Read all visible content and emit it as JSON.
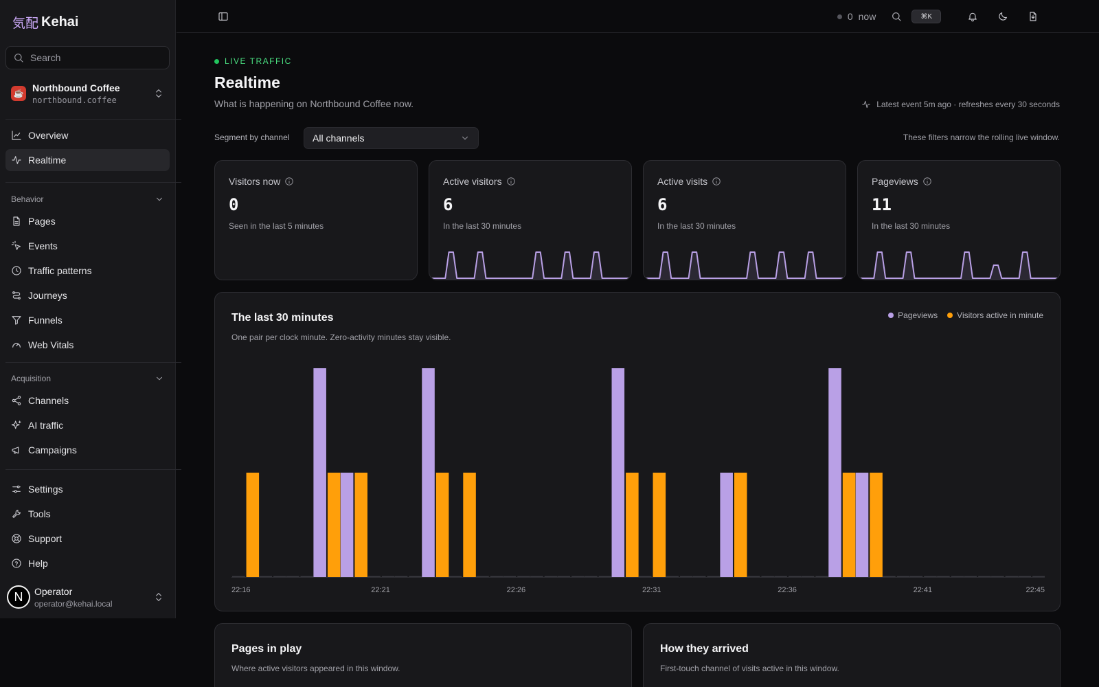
{
  "brand": {
    "kanji": "気配",
    "name": "Kehai"
  },
  "sidebar": {
    "search_placeholder": "Search",
    "site": {
      "name": "Northbound Coffee",
      "domain": "northbound.coffee"
    },
    "main_items": [
      "Overview",
      "Realtime"
    ],
    "behavior": {
      "label": "Behavior",
      "items": [
        "Pages",
        "Events",
        "Traffic patterns",
        "Journeys",
        "Funnels",
        "Web Vitals"
      ]
    },
    "acquisition": {
      "label": "Acquisition",
      "items": [
        "Channels",
        "AI traffic",
        "Campaigns"
      ]
    },
    "footer_items": [
      "Settings",
      "Tools",
      "Support",
      "Help"
    ],
    "user": {
      "initial": "N",
      "name": "Operator",
      "email": "operator@kehai.local"
    }
  },
  "topbar": {
    "live_count": "0",
    "live_label": "now",
    "shortcut": "⌘K"
  },
  "header": {
    "eyebrow": "LIVE TRAFFIC",
    "title": "Realtime",
    "subtitle": "What is happening on Northbound Coffee now.",
    "latest_event": "Latest event 5m ago · refreshes every 30 seconds",
    "segment_label": "Segment by channel",
    "segment_value": "All channels",
    "filter_note": "These filters narrow the rolling live window."
  },
  "stats": [
    {
      "label": "Visitors now",
      "value": "0",
      "caption": "Seen in the last 5 minutes",
      "spark": []
    },
    {
      "label": "Active visitors",
      "value": "6",
      "caption": "In the last 30 minutes",
      "spark": [
        0,
        1,
        0,
        1,
        0,
        0,
        0,
        1,
        0,
        1,
        0,
        1,
        0,
        0
      ]
    },
    {
      "label": "Active visits",
      "value": "6",
      "caption": "In the last 30 minutes",
      "spark": [
        0,
        1,
        0,
        1,
        0,
        0,
        0,
        1,
        0,
        1,
        0,
        1,
        0,
        0
      ]
    },
    {
      "label": "Pageviews",
      "value": "11",
      "caption": "In the last 30 minutes",
      "spark": [
        0,
        1,
        0,
        1,
        0,
        0,
        0,
        1,
        0,
        0.5,
        0,
        1,
        0,
        0
      ]
    }
  ],
  "chart": {
    "title": "The last 30 minutes",
    "subtitle": "One pair per clock minute. Zero-activity minutes stay visible.",
    "legend": [
      {
        "name": "Pageviews",
        "color": "#b9a0e6"
      },
      {
        "name": "Visitors active in minute",
        "color": "#ff9f0a"
      }
    ]
  },
  "chart_data": {
    "type": "bar",
    "categories": [
      "22:16",
      "22:17",
      "22:18",
      "22:19",
      "22:20",
      "22:21",
      "22:22",
      "22:23",
      "22:24",
      "22:25",
      "22:26",
      "22:27",
      "22:28",
      "22:29",
      "22:30",
      "22:31",
      "22:32",
      "22:33",
      "22:34",
      "22:35",
      "22:36",
      "22:37",
      "22:38",
      "22:39",
      "22:40",
      "22:41",
      "22:42",
      "22:43",
      "22:44",
      "22:45"
    ],
    "tick_labels": [
      "22:16",
      "22:21",
      "22:26",
      "22:31",
      "22:36",
      "22:41",
      "22:45"
    ],
    "series": [
      {
        "name": "Pageviews",
        "color": "#b9a0e6",
        "values": [
          0,
          0,
          0,
          2,
          1,
          0,
          0,
          2,
          0,
          0,
          0,
          0,
          0,
          0,
          2,
          0,
          0,
          0,
          1,
          0,
          0,
          0,
          2,
          1,
          0,
          0,
          0,
          0,
          0,
          0
        ]
      },
      {
        "name": "Visitors active in minute",
        "color": "#ff9f0a",
        "values": [
          1,
          0,
          0,
          1,
          1,
          0,
          0,
          1,
          1,
          0,
          0,
          0,
          0,
          0,
          1,
          1,
          0,
          0,
          1,
          0,
          0,
          0,
          1,
          1,
          0,
          0,
          0,
          0,
          0,
          0
        ]
      }
    ],
    "ylim": [
      0,
      2
    ],
    "grid": false,
    "legend": "top-right"
  },
  "bottom_cards": [
    {
      "title": "Pages in play",
      "subtitle": "Where active visitors appeared in this window."
    },
    {
      "title": "How they arrived",
      "subtitle": "First-touch channel of visits active in this window."
    }
  ]
}
